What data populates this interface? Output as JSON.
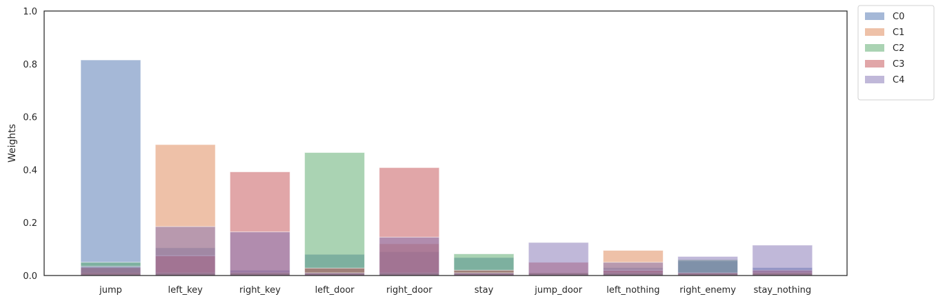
{
  "chart_data": {
    "type": "bar",
    "title": "",
    "xlabel": "",
    "ylabel": "Weights",
    "ylim": [
      0,
      1
    ],
    "yticks": [
      "0.0",
      "0.2",
      "0.4",
      "0.6",
      "0.8",
      "1.0"
    ],
    "grid": false,
    "legend_position": "outside top-right",
    "overlay": true,
    "categories": [
      "jump",
      "left_key",
      "right_key",
      "left_door",
      "right_door",
      "stay",
      "jump_door",
      "left_nothing",
      "right_enemy",
      "stay_nothing"
    ],
    "series": [
      {
        "name": "C0",
        "color": "#4c72b0",
        "values": [
          0.815,
          0.105,
          0.02,
          0.08,
          0.09,
          0.068,
          0.01,
          0.03,
          0.055,
          0.03
        ]
      },
      {
        "name": "C1",
        "color": "#dd8452",
        "values": [
          0.01,
          0.495,
          0.01,
          0.01,
          0.12,
          0.01,
          0.01,
          0.095,
          0.01,
          0.01
        ]
      },
      {
        "name": "C2",
        "color": "#55a868",
        "values": [
          0.05,
          0.01,
          0.01,
          0.465,
          0.01,
          0.082,
          0.01,
          0.01,
          0.06,
          0.01
        ]
      },
      {
        "name": "C3",
        "color": "#c44e52",
        "values": [
          0.03,
          0.075,
          0.392,
          0.028,
          0.408,
          0.02,
          0.05,
          0.02,
          0.01,
          0.02
        ]
      },
      {
        "name": "C4",
        "color": "#8172b3",
        "values": [
          0.035,
          0.185,
          0.165,
          0.01,
          0.145,
          0.01,
          0.125,
          0.05,
          0.072,
          0.115
        ]
      }
    ]
  }
}
